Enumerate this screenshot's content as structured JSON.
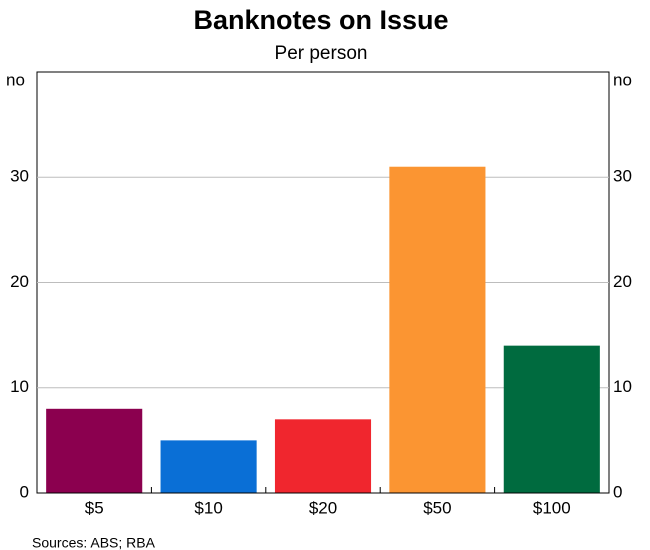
{
  "chart_data": {
    "type": "bar",
    "title": "Banknotes on Issue",
    "subtitle": "Per person",
    "y_label": "no",
    "categories": [
      "$5",
      "$10",
      "$20",
      "$50",
      "$100"
    ],
    "values": [
      8,
      5,
      7,
      31,
      14
    ],
    "colors": [
      "#8b004f",
      "#0a6fd6",
      "#f0262e",
      "#fb9532",
      "#006b3f"
    ],
    "ylim": [
      0,
      40
    ],
    "yticks": [
      0,
      10,
      20,
      30
    ],
    "grid": true,
    "source": "Sources:   ABS; RBA"
  }
}
